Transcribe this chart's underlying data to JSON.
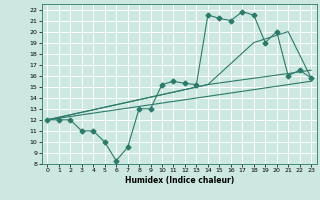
{
  "title": "",
  "xlabel": "Humidex (Indice chaleur)",
  "bg_color": "#cce8e0",
  "grid_color": "#ffffff",
  "line_color": "#2d7a6a",
  "xlim": [
    -0.5,
    23.5
  ],
  "ylim": [
    8,
    22.5
  ],
  "xticks": [
    0,
    1,
    2,
    3,
    4,
    5,
    6,
    7,
    8,
    9,
    10,
    11,
    12,
    13,
    14,
    15,
    16,
    17,
    18,
    19,
    20,
    21,
    22,
    23
  ],
  "yticks": [
    8,
    9,
    10,
    11,
    12,
    13,
    14,
    15,
    16,
    17,
    18,
    19,
    20,
    21,
    22
  ],
  "line1_x": [
    0,
    1,
    2,
    3,
    4,
    5,
    6,
    7,
    8,
    9,
    10,
    11,
    12,
    13,
    14,
    15,
    16,
    17,
    18,
    19,
    20,
    21,
    22,
    23
  ],
  "line1_y": [
    12,
    12,
    12,
    11,
    11,
    10,
    8.3,
    9.5,
    13,
    13,
    15.2,
    15.5,
    15.3,
    15.2,
    21.5,
    21.2,
    21,
    21.8,
    21.5,
    19,
    20,
    16,
    16.5,
    15.8
  ],
  "line2_x": [
    0,
    14,
    21,
    23
  ],
  "line2_y": [
    12,
    15.2,
    16.2,
    16.5
  ],
  "line3_x": [
    0,
    14,
    18,
    21,
    23
  ],
  "line3_y": [
    12,
    15.2,
    19,
    20,
    15.8
  ],
  "line4_x": [
    0,
    23
  ],
  "line4_y": [
    12,
    15.5
  ],
  "markersize": 2.5
}
